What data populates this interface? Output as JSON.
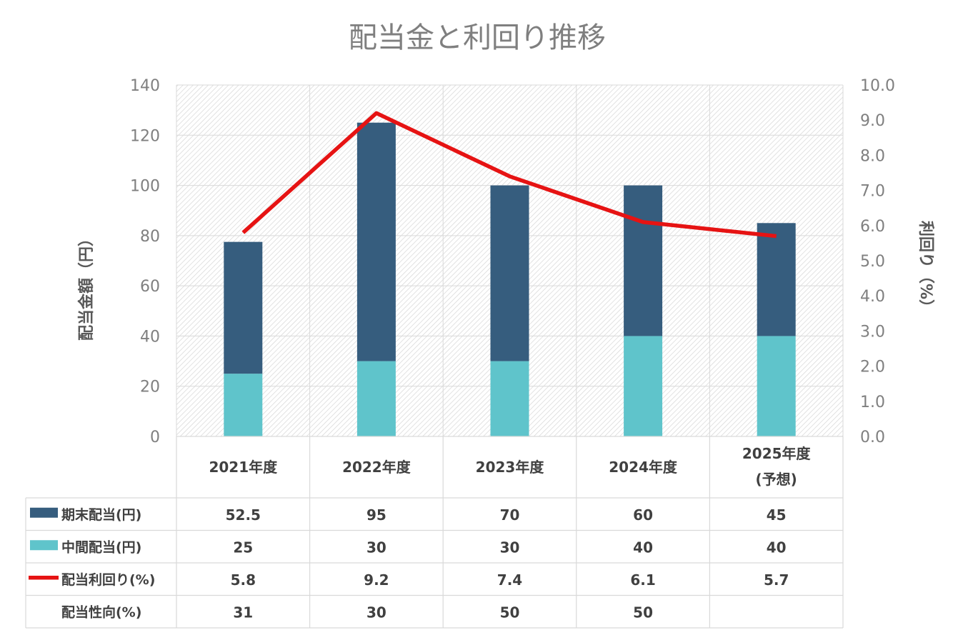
{
  "chart_data": {
    "type": "bar",
    "title": "配当金と利回り推移",
    "categories": [
      {
        "line1": "2021年度",
        "line2": ""
      },
      {
        "line1": "2022年度",
        "line2": ""
      },
      {
        "line1": "2023年度",
        "line2": ""
      },
      {
        "line1": "2024年度",
        "line2": ""
      },
      {
        "line1": "2025年度",
        "line2": "(予想)"
      }
    ],
    "ylabel": "配当金額（円）",
    "y2label": "利回り（%）",
    "ylim": [
      0,
      140
    ],
    "y2lim": [
      0,
      10
    ],
    "y_ticks": [
      "0",
      "20",
      "40",
      "60",
      "80",
      "100",
      "120",
      "140"
    ],
    "y2_ticks": [
      "0.0",
      "1.0",
      "2.0",
      "3.0",
      "4.0",
      "5.0",
      "6.0",
      "7.0",
      "8.0",
      "9.0",
      "10.0"
    ],
    "grid": true,
    "series": [
      {
        "name": "中間配当(円)",
        "kind": "bar",
        "stack": "dividend",
        "color": "#5fc4cb",
        "values": [
          25,
          30,
          30,
          40,
          40
        ]
      },
      {
        "name": "期末配当(円)",
        "kind": "bar",
        "stack": "dividend",
        "color": "#365d7e",
        "values": [
          52.5,
          95,
          70,
          60,
          45
        ]
      },
      {
        "name": "配当利回り(%)",
        "kind": "line",
        "axis": "right",
        "color": "#e61313",
        "values": [
          5.8,
          9.2,
          7.4,
          6.1,
          5.7
        ]
      }
    ],
    "table": {
      "rows": [
        {
          "label": "期末配当(円)",
          "legend": "bar",
          "color": "#365d7e",
          "cells": [
            "52.5",
            "95",
            "70",
            "60",
            "45"
          ]
        },
        {
          "label": "中間配当(円)",
          "legend": "bar",
          "color": "#5fc4cb",
          "cells": [
            "25",
            "30",
            "30",
            "40",
            "40"
          ]
        },
        {
          "label": "配当利回り(%)",
          "legend": "line",
          "color": "#e61313",
          "cells": [
            "5.8",
            "9.2",
            "7.4",
            "6.1",
            "5.7"
          ]
        },
        {
          "label": "配当性向(%)",
          "legend": "none",
          "color": "",
          "cells": [
            "31",
            "30",
            "50",
            "50",
            ""
          ]
        }
      ]
    }
  }
}
